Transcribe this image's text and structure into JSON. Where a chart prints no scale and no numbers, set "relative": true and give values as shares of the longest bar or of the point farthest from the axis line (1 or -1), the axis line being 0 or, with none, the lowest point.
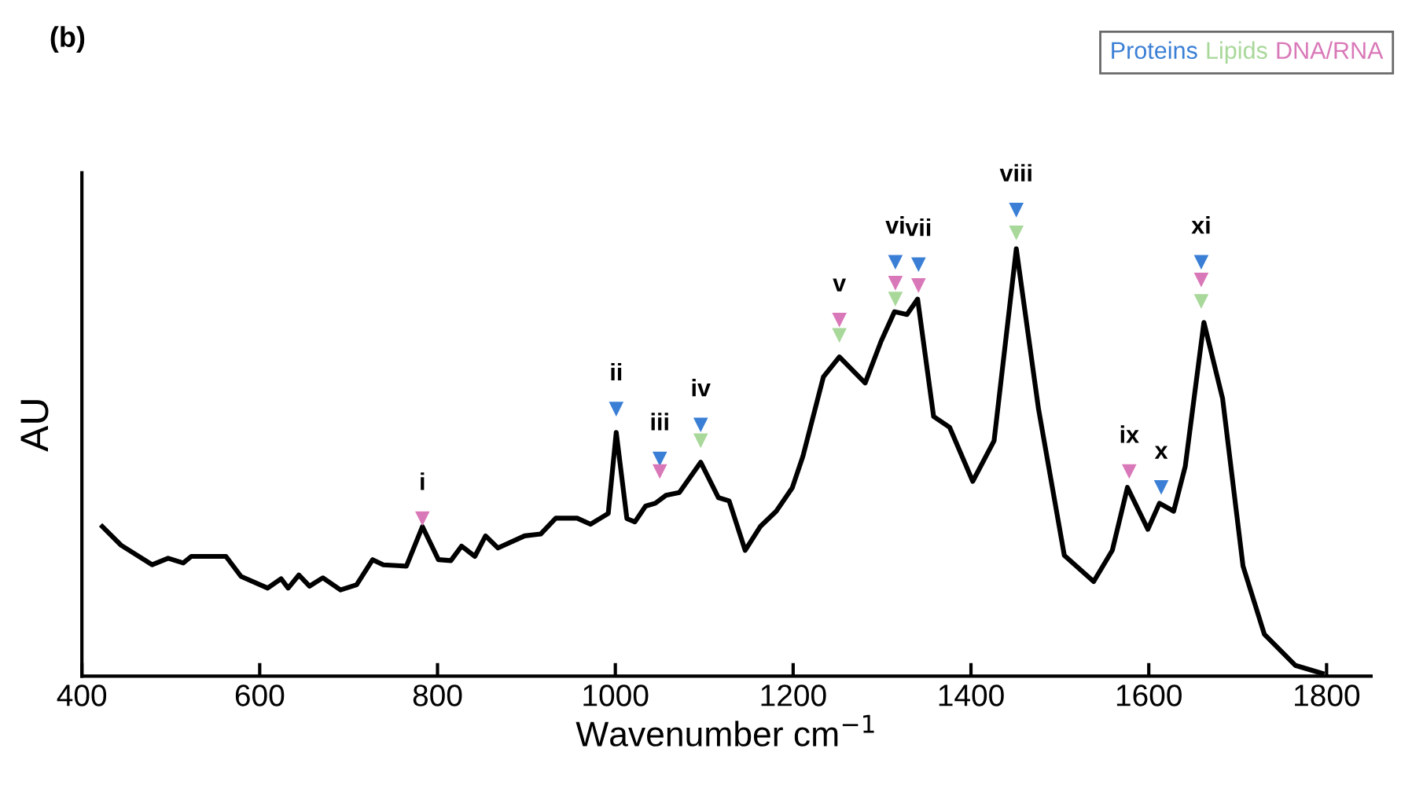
{
  "chart_data": {
    "type": "line",
    "title": "(b)",
    "xlabel": "Wavenumber cm$^{−1}$",
    "ylabel": "AU",
    "relative": true,
    "xlim": [
      400,
      1850
    ],
    "xticks": [
      400,
      600,
      800,
      1000,
      1200,
      1400,
      1600,
      1800
    ],
    "grid": false,
    "legend": "top right",
    "series": [
      {
        "color": "#000000",
        "x": [
          423,
          444,
          479,
          497,
          514,
          523,
          562,
          579,
          609,
          624,
          632,
          644,
          656,
          671,
          691,
          709,
          727,
          739,
          765,
          783,
          801,
          815,
          827,
          842,
          854,
          868,
          898,
          916,
          933,
          957,
          972,
          992,
          1001,
          1013,
          1022,
          1034,
          1045,
          1057,
          1072,
          1096,
          1116,
          1128,
          1146,
          1163,
          1181,
          1199,
          1211,
          1234,
          1252,
          1281,
          1299,
          1314,
          1328,
          1340,
          1358,
          1376,
          1402,
          1426,
          1451,
          1476,
          1505,
          1538,
          1559,
          1576,
          1599,
          1612,
          1628,
          1641,
          1662,
          1683,
          1706,
          1730,
          1765,
          1795
        ],
        "values": [
          0.321,
          0.281,
          0.239,
          0.253,
          0.243,
          0.257,
          0.257,
          0.214,
          0.189,
          0.209,
          0.189,
          0.217,
          0.193,
          0.211,
          0.185,
          0.196,
          0.25,
          0.239,
          0.236,
          0.321,
          0.25,
          0.248,
          0.279,
          0.257,
          0.301,
          0.275,
          0.301,
          0.305,
          0.339,
          0.339,
          0.326,
          0.349,
          0.523,
          0.338,
          0.331,
          0.365,
          0.371,
          0.388,
          0.394,
          0.459,
          0.383,
          0.376,
          0.27,
          0.321,
          0.354,
          0.404,
          0.472,
          0.642,
          0.685,
          0.629,
          0.719,
          0.782,
          0.776,
          0.809,
          0.557,
          0.534,
          0.418,
          0.505,
          0.917,
          0.573,
          0.259,
          0.203,
          0.27,
          0.405,
          0.315,
          0.371,
          0.354,
          0.45,
          0.759,
          0.596,
          0.236,
          0.09,
          0.023,
          0.006
        ]
      },
      {
        "type": "scatter",
        "marker": "triangle",
        "name": "Proteins",
        "color": "#3a7fd5",
        "x": [
          1001,
          1050,
          1096,
          1315,
          1341,
          1451,
          1614,
          1659
        ],
        "values": [
          0.573,
          0.466,
          0.539,
          0.888,
          0.883,
          1.0,
          0.405,
          0.888
        ]
      },
      {
        "type": "scatter",
        "marker": "triangle",
        "name": "Lipids",
        "color": "#a8d89a",
        "x": [
          1096,
          1252,
          1315,
          1451,
          1659
        ],
        "values": [
          0.505,
          0.731,
          0.809,
          0.951,
          0.804
        ]
      },
      {
        "type": "scatter",
        "marker": "triangle",
        "name": "DNA/RNA",
        "color": "#d978b8",
        "x": [
          783,
          1050,
          1252,
          1315,
          1341,
          1578,
          1659
        ],
        "values": [
          0.338,
          0.439,
          0.764,
          0.843,
          0.838,
          0.439,
          0.85
        ]
      }
    ],
    "annotations": [
      {
        "text": "i",
        "x": 783,
        "y": 0.338
      },
      {
        "text": "ii",
        "x": 1001,
        "y": 0.573
      },
      {
        "text": "iii",
        "x": 1050,
        "y": 0.466
      },
      {
        "text": "iv",
        "x": 1096,
        "y": 0.539
      },
      {
        "text": "v",
        "x": 1252,
        "y": 0.764
      },
      {
        "text": "vi",
        "x": 1315,
        "y": 0.888
      },
      {
        "text": "vii",
        "x": 1341,
        "y": 0.883
      },
      {
        "text": "viii",
        "x": 1451,
        "y": 1.0
      },
      {
        "text": "ix",
        "x": 1578,
        "y": 0.439
      },
      {
        "text": "x",
        "x": 1614,
        "y": 0.405
      },
      {
        "text": "xi",
        "x": 1659,
        "y": 0.888
      }
    ]
  }
}
